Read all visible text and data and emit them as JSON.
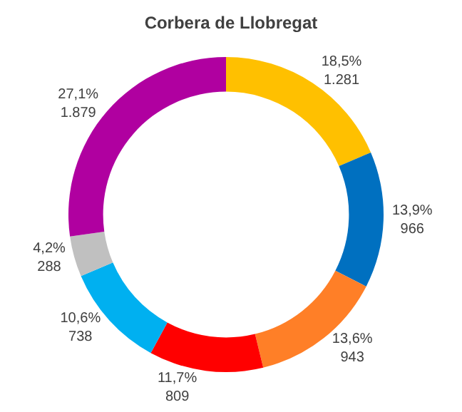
{
  "chart_data": {
    "type": "donut",
    "title": "Corbera de Llobregat",
    "categories": [
      null,
      null,
      null,
      null,
      null,
      null,
      null
    ],
    "values": [
      1281,
      966,
      943,
      809,
      738,
      288,
      1879
    ],
    "colors": [
      "#ffc000",
      "#0070c0",
      "#ff7f27",
      "#ff0000",
      "#00b0f0",
      "#c0c0c0",
      "#b000a0"
    ],
    "value_labels": [
      "18,5%\n1.281",
      "13,9%\n966",
      "13,6%\n943",
      "11,7%\n809",
      "10,6%\n738",
      "4,2%\n288",
      "27,1%\n1.879"
    ]
  }
}
